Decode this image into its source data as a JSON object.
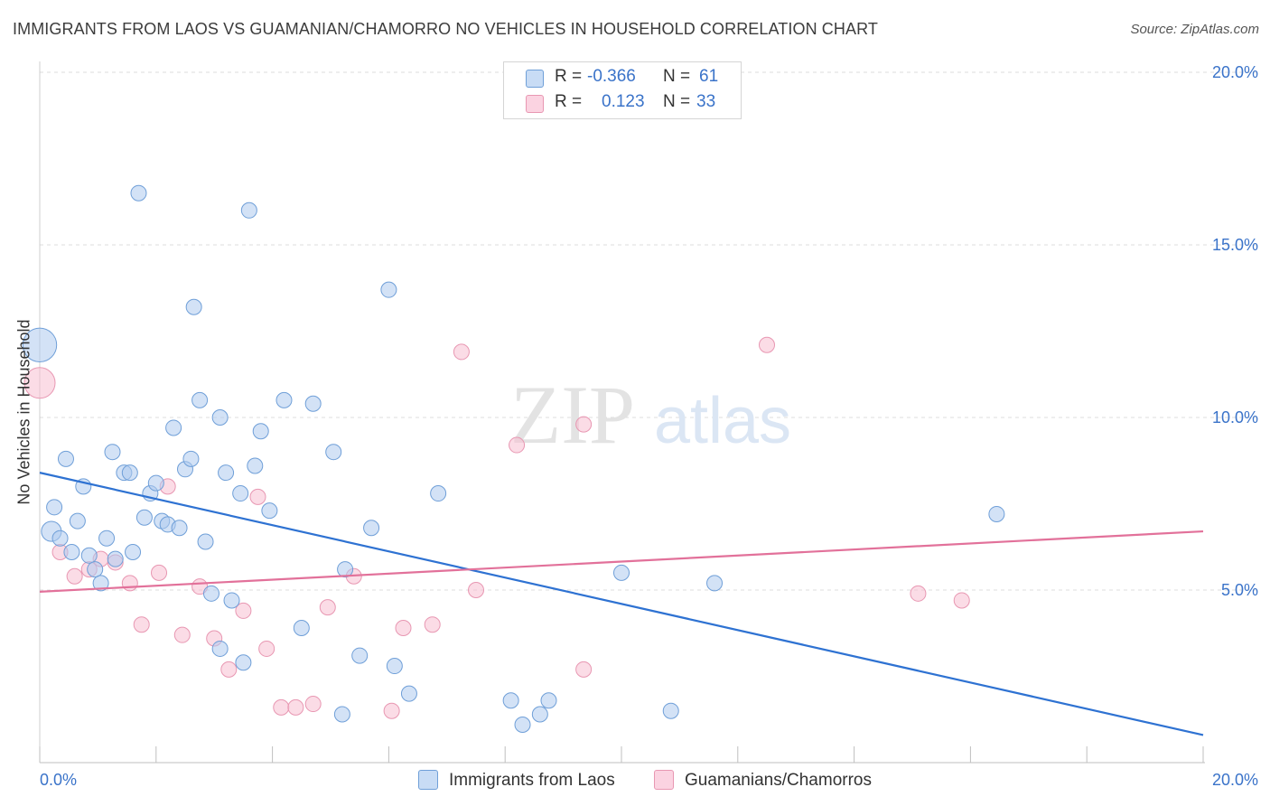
{
  "title": "IMMIGRANTS FROM LAOS VS GUAMANIAN/CHAMORRO NO VEHICLES IN HOUSEHOLD CORRELATION CHART",
  "source": "Source: ZipAtlas.com",
  "watermark": {
    "zip": "ZIP",
    "atlas": "atlas"
  },
  "legend": {
    "rows": [
      {
        "r_label": "R =",
        "r_value": "-0.366",
        "n_label": "N =",
        "n_value": "61",
        "color": "#aecbef"
      },
      {
        "r_label": "R =",
        "r_value": "0.123",
        "n_label": "N =",
        "n_value": "33",
        "color": "#f7bfd1"
      }
    ]
  },
  "bottom_legend": [
    {
      "label": "Immigrants from Laos",
      "color": "#aecbef"
    },
    {
      "label": "Guamanians/Chamorros",
      "color": "#f7bfd1"
    }
  ],
  "chart_data": {
    "type": "scatter",
    "title": "IMMIGRANTS FROM LAOS VS GUAMANIAN/CHAMORRO NO VEHICLES IN HOUSEHOLD CORRELATION CHART",
    "xlabel": "",
    "ylabel": "No Vehicles in Household",
    "xlim": [
      0,
      20
    ],
    "ylim": [
      0,
      20
    ],
    "x_tick_labels": [
      "0.0%",
      "20.0%"
    ],
    "y_ticks": [
      {
        "value": 5,
        "label": "5.0%"
      },
      {
        "value": 10,
        "label": "10.0%"
      },
      {
        "value": 15,
        "label": "15.0%"
      },
      {
        "value": 20,
        "label": "20.0%"
      }
    ],
    "grid": true,
    "series": [
      {
        "name": "Immigrants from Laos",
        "color": "#aecbef",
        "stroke": "#6f9fd8",
        "line_color": "#2e72d2",
        "trend": {
          "x": [
            0,
            20
          ],
          "y": [
            8.4,
            0.8
          ]
        },
        "points": [
          {
            "x": 0.0,
            "y": 12.1,
            "s": 2.2
          },
          {
            "x": 0.2,
            "y": 6.7,
            "s": 1.3
          },
          {
            "x": 0.25,
            "y": 7.4
          },
          {
            "x": 0.35,
            "y": 6.5
          },
          {
            "x": 0.45,
            "y": 8.8
          },
          {
            "x": 0.55,
            "y": 6.1
          },
          {
            "x": 0.65,
            "y": 7.0
          },
          {
            "x": 0.75,
            "y": 8.0
          },
          {
            "x": 0.85,
            "y": 6.0
          },
          {
            "x": 0.95,
            "y": 5.6
          },
          {
            "x": 1.05,
            "y": 5.2
          },
          {
            "x": 1.15,
            "y": 6.5
          },
          {
            "x": 1.25,
            "y": 9.0
          },
          {
            "x": 1.3,
            "y": 5.9
          },
          {
            "x": 1.45,
            "y": 8.4
          },
          {
            "x": 1.55,
            "y": 8.4
          },
          {
            "x": 1.6,
            "y": 6.1
          },
          {
            "x": 1.7,
            "y": 16.5
          },
          {
            "x": 1.8,
            "y": 7.1
          },
          {
            "x": 1.9,
            "y": 7.8
          },
          {
            "x": 2.0,
            "y": 8.1
          },
          {
            "x": 2.1,
            "y": 7.0
          },
          {
            "x": 2.2,
            "y": 6.9
          },
          {
            "x": 2.3,
            "y": 9.7
          },
          {
            "x": 2.4,
            "y": 6.8
          },
          {
            "x": 2.5,
            "y": 8.5
          },
          {
            "x": 2.6,
            "y": 8.8
          },
          {
            "x": 2.65,
            "y": 13.2
          },
          {
            "x": 2.75,
            "y": 10.5
          },
          {
            "x": 2.85,
            "y": 6.4
          },
          {
            "x": 2.95,
            "y": 4.9
          },
          {
            "x": 3.1,
            "y": 10.0
          },
          {
            "x": 3.1,
            "y": 3.3
          },
          {
            "x": 3.2,
            "y": 8.4
          },
          {
            "x": 3.3,
            "y": 4.7
          },
          {
            "x": 3.45,
            "y": 7.8
          },
          {
            "x": 3.5,
            "y": 2.9
          },
          {
            "x": 3.6,
            "y": 16.0
          },
          {
            "x": 3.7,
            "y": 8.6
          },
          {
            "x": 3.8,
            "y": 9.6
          },
          {
            "x": 3.95,
            "y": 7.3
          },
          {
            "x": 4.2,
            "y": 10.5
          },
          {
            "x": 4.5,
            "y": 3.9
          },
          {
            "x": 4.7,
            "y": 10.4
          },
          {
            "x": 5.05,
            "y": 9.0
          },
          {
            "x": 5.2,
            "y": 1.4
          },
          {
            "x": 5.25,
            "y": 5.6
          },
          {
            "x": 5.5,
            "y": 3.1
          },
          {
            "x": 5.7,
            "y": 6.8
          },
          {
            "x": 6.0,
            "y": 13.7
          },
          {
            "x": 6.1,
            "y": 2.8
          },
          {
            "x": 6.35,
            "y": 2.0
          },
          {
            "x": 6.85,
            "y": 7.8
          },
          {
            "x": 8.1,
            "y": 1.8
          },
          {
            "x": 8.3,
            "y": 1.1
          },
          {
            "x": 8.6,
            "y": 1.4
          },
          {
            "x": 8.75,
            "y": 1.8
          },
          {
            "x": 10.0,
            "y": 5.5
          },
          {
            "x": 10.85,
            "y": 1.5
          },
          {
            "x": 11.6,
            "y": 5.2
          },
          {
            "x": 16.45,
            "y": 7.2
          }
        ]
      },
      {
        "name": "Guamanians/Chamorros",
        "color": "#f7bfd1",
        "stroke": "#e897b2",
        "line_color": "#e2719a",
        "trend": {
          "x": [
            0,
            20
          ],
          "y": [
            4.95,
            6.7
          ]
        },
        "points": [
          {
            "x": 0.0,
            "y": 11.0,
            "s": 2.0
          },
          {
            "x": 0.35,
            "y": 6.1
          },
          {
            "x": 0.6,
            "y": 5.4
          },
          {
            "x": 0.85,
            "y": 5.6
          },
          {
            "x": 1.05,
            "y": 5.9
          },
          {
            "x": 1.3,
            "y": 5.8
          },
          {
            "x": 1.55,
            "y": 5.2
          },
          {
            "x": 1.75,
            "y": 4.0
          },
          {
            "x": 2.05,
            "y": 5.5
          },
          {
            "x": 2.2,
            "y": 8.0
          },
          {
            "x": 2.45,
            "y": 3.7
          },
          {
            "x": 2.75,
            "y": 5.1
          },
          {
            "x": 3.0,
            "y": 3.6
          },
          {
            "x": 3.25,
            "y": 2.7
          },
          {
            "x": 3.5,
            "y": 4.4
          },
          {
            "x": 3.75,
            "y": 7.7
          },
          {
            "x": 3.9,
            "y": 3.3
          },
          {
            "x": 4.15,
            "y": 1.6
          },
          {
            "x": 4.4,
            "y": 1.6
          },
          {
            "x": 4.7,
            "y": 1.7
          },
          {
            "x": 4.95,
            "y": 4.5
          },
          {
            "x": 5.4,
            "y": 5.4
          },
          {
            "x": 6.05,
            "y": 1.5
          },
          {
            "x": 6.25,
            "y": 3.9
          },
          {
            "x": 6.75,
            "y": 4.0
          },
          {
            "x": 7.25,
            "y": 11.9
          },
          {
            "x": 7.5,
            "y": 5.0
          },
          {
            "x": 8.2,
            "y": 9.2
          },
          {
            "x": 9.35,
            "y": 2.7
          },
          {
            "x": 9.35,
            "y": 9.8
          },
          {
            "x": 12.5,
            "y": 12.1
          },
          {
            "x": 15.1,
            "y": 4.9
          },
          {
            "x": 15.85,
            "y": 4.7
          }
        ]
      }
    ]
  }
}
